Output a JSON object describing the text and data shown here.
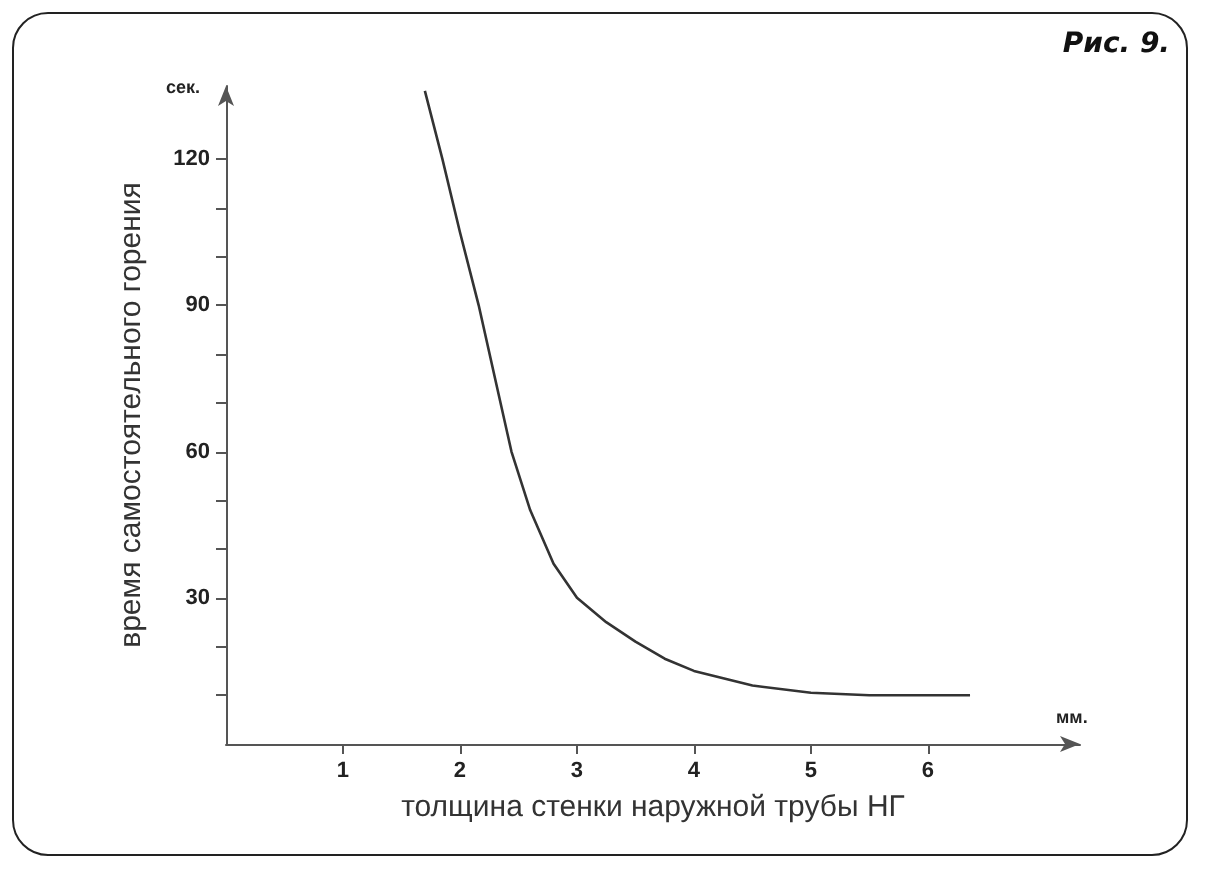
{
  "chart_data": {
    "type": "line",
    "title": "Рис. 9.",
    "xlabel": "толщина стенки наружной трубы НГ",
    "ylabel": "время самостоятельного горения",
    "annotations": [
      "сек.",
      "мм."
    ],
    "x": [
      1.7,
      1.85,
      2,
      2.16,
      2.3,
      2.44,
      2.6,
      2.8,
      3,
      3.25,
      3.5,
      3.75,
      4,
      4.5,
      5,
      5.5,
      6,
      6.36
    ],
    "series": [
      {
        "color": "#333333",
        "values": [
          134,
          120,
          105,
          90,
          75,
          60,
          48,
          37,
          30,
          25,
          21,
          17.5,
          15,
          12,
          10.5,
          10,
          10,
          10
        ]
      }
    ],
    "xlim": [
      0,
      7.3
    ],
    "xticks": [
      1,
      2,
      3,
      4,
      5,
      6
    ],
    "ylim": [
      0,
      135
    ],
    "yticks": [
      {
        "value": 10,
        "label": null
      },
      {
        "value": 20,
        "label": null
      },
      30,
      {
        "value": 40,
        "label": null
      },
      {
        "value": 50,
        "label": null
      },
      60,
      {
        "value": 70,
        "label": null
      },
      {
        "value": 80,
        "label": null
      },
      90,
      {
        "value": 100,
        "label": null
      },
      {
        "value": 110,
        "label": null
      },
      120
    ],
    "marker": "none",
    "line_style": "solid"
  }
}
